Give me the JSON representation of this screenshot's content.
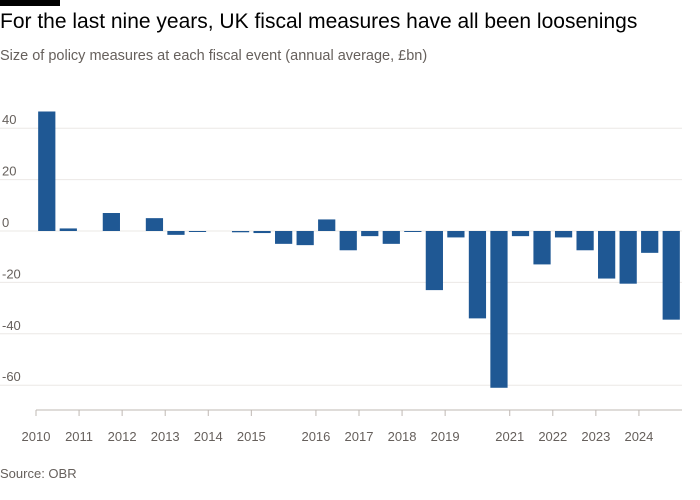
{
  "title": "For the last nine years, UK fiscal measures have all been loosenings",
  "subtitle": "Size of policy measures at each fiscal event (annual average, £bn)",
  "source": "Source: OBR",
  "colors": {
    "bar": "#1f5894",
    "grid": "#ebe8e6",
    "axis": "#bfb8b3",
    "text": "#66605c"
  },
  "chart_data": {
    "type": "bar",
    "title": "For the last nine years, UK fiscal measures have all been loosenings",
    "ylabel": "",
    "xlabel": "",
    "ylim": [
      -70,
      50
    ],
    "yticks": [
      40,
      20,
      0,
      -20,
      -40,
      -60
    ],
    "grid": true,
    "x_tick_labels": [
      "2010",
      "2011",
      "2012",
      "2013",
      "2014",
      "2015",
      "2016",
      "2017",
      "2018",
      "2019",
      "2021",
      "2022",
      "2023",
      "2024"
    ],
    "x_tick_label_positions": [
      0,
      2,
      4,
      6,
      8,
      10,
      13,
      15,
      17,
      19,
      22,
      24,
      26,
      28
    ],
    "values": [
      46.5,
      1.0,
      0,
      7.0,
      0,
      5.0,
      -1.5,
      -0.3,
      0,
      -0.5,
      -0.8,
      -5.0,
      -5.5,
      4.5,
      -7.5,
      -2.0,
      -5.0,
      -0.3,
      -23.0,
      -2.5,
      -34.0,
      -61.0,
      -2.0,
      -13.0,
      -2.5,
      -7.5,
      -18.5,
      -20.5,
      -8.5,
      -34.5
    ]
  }
}
